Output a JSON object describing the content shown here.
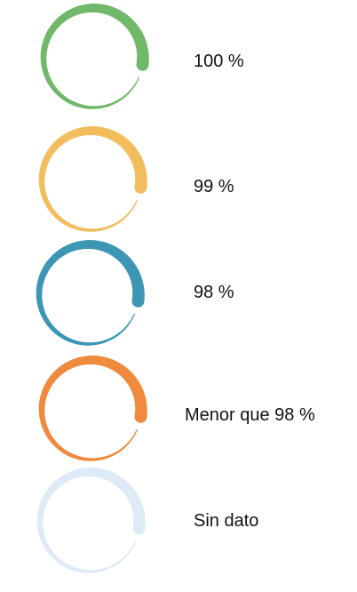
{
  "legend": {
    "items": [
      {
        "label": "100 %",
        "color": "#72b86a"
      },
      {
        "label": "99 %",
        "color": "#f2bd5c"
      },
      {
        "label": "98 %",
        "color": "#3d97b4"
      },
      {
        "label": "Menor que 98 %",
        "color": "#f08a3e"
      },
      {
        "label": "Sin dato",
        "color": "#dfeaf7"
      }
    ]
  }
}
